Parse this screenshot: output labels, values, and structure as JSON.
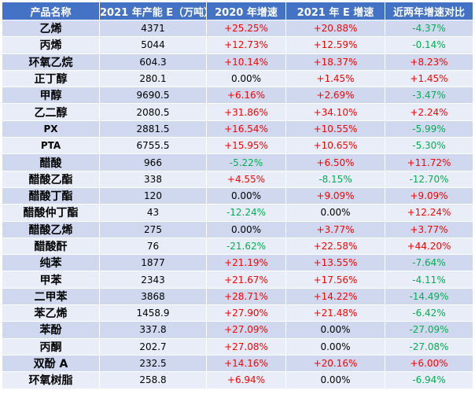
{
  "headers": [
    "产品名称",
    "2021 年产能 E（万吨）",
    "2020 年增速",
    "2021 年 E 增速",
    "近两年增速对比"
  ],
  "colors": {
    "header_bg": "#4472c4",
    "row_odd": "#cfd8ee",
    "row_even": "#e9edf7",
    "positive": "#ff0000",
    "negative": "#00b050"
  },
  "rows": [
    {
      "name": "乙烯",
      "capacity": "4371",
      "g2020": "+25.25%",
      "g2021": "+20.88%",
      "diff": "-4.37%"
    },
    {
      "name": "丙烯",
      "capacity": "5044",
      "g2020": "+12.73%",
      "g2021": "+12.59%",
      "diff": "-0.14%"
    },
    {
      "name": "环氧乙烷",
      "capacity": "604.3",
      "g2020": "+10.14%",
      "g2021": "+18.37%",
      "diff": "+8.23%"
    },
    {
      "name": "正丁醇",
      "capacity": "280.1",
      "g2020": "0.00%",
      "g2021": "+1.45%",
      "diff": "+1.45%"
    },
    {
      "name": "甲醇",
      "capacity": "9690.5",
      "g2020": "+6.16%",
      "g2021": "+2.69%",
      "diff": "-3.47%"
    },
    {
      "name": "乙二醇",
      "capacity": "2080.5",
      "g2020": "+31.86%",
      "g2021": "+34.10%",
      "diff": "+2.24%"
    },
    {
      "name": "PX",
      "capacity": "2881.5",
      "g2020": "+16.54%",
      "g2021": "+10.55%",
      "diff": "-5.99%"
    },
    {
      "name": "PTA",
      "capacity": "6755.5",
      "g2020": "+15.95%",
      "g2021": "+10.65%",
      "diff": "-5.30%"
    },
    {
      "name": "醋酸",
      "capacity": "966",
      "g2020": "-5.22%",
      "g2021": "+6.50%",
      "diff": "+11.72%"
    },
    {
      "name": "醋酸乙酯",
      "capacity": "338",
      "g2020": "+4.55%",
      "g2021": "-8.15%",
      "diff": "-12.70%"
    },
    {
      "name": "醋酸丁酯",
      "capacity": "120",
      "g2020": "0.00%",
      "g2021": "+9.09%",
      "diff": "+9.09%"
    },
    {
      "name": "醋酸仲丁酯",
      "capacity": "43",
      "g2020": "-12.24%",
      "g2021": "0.00%",
      "diff": "+12.24%"
    },
    {
      "name": "醋酸乙烯",
      "capacity": "275",
      "g2020": "0.00%",
      "g2021": "+3.77%",
      "diff": "+3.77%"
    },
    {
      "name": "醋酸酐",
      "capacity": "76",
      "g2020": "-21.62%",
      "g2021": "+22.58%",
      "diff": "+44.20%"
    },
    {
      "name": "纯苯",
      "capacity": "1877",
      "g2020": "+21.19%",
      "g2021": "+13.55%",
      "diff": "-7.64%"
    },
    {
      "name": "甲苯",
      "capacity": "2343",
      "g2020": "+21.67%",
      "g2021": "+17.56%",
      "diff": "-4.11%"
    },
    {
      "name": "二甲苯",
      "capacity": "3868",
      "g2020": "+28.71%",
      "g2021": "+14.22%",
      "diff": "-14.49%"
    },
    {
      "name": "苯乙烯",
      "capacity": "1458.9",
      "g2020": "+27.90%",
      "g2021": "+21.48%",
      "diff": "-6.42%"
    },
    {
      "name": "苯酚",
      "capacity": "337.8",
      "g2020": "+27.09%",
      "g2021": "0.00%",
      "diff": "-27.09%"
    },
    {
      "name": "丙酮",
      "capacity": "202.7",
      "g2020": "+27.08%",
      "g2021": "0.00%",
      "diff": "-27.08%"
    },
    {
      "name": "双酚 A",
      "capacity": "232.5",
      "g2020": "+14.16%",
      "g2021": "+20.16%",
      "diff": "+6.00%"
    },
    {
      "name": "环氧树脂",
      "capacity": "258.8",
      "g2020": "+6.94%",
      "g2021": "0.00%",
      "diff": "-6.94%"
    }
  ]
}
